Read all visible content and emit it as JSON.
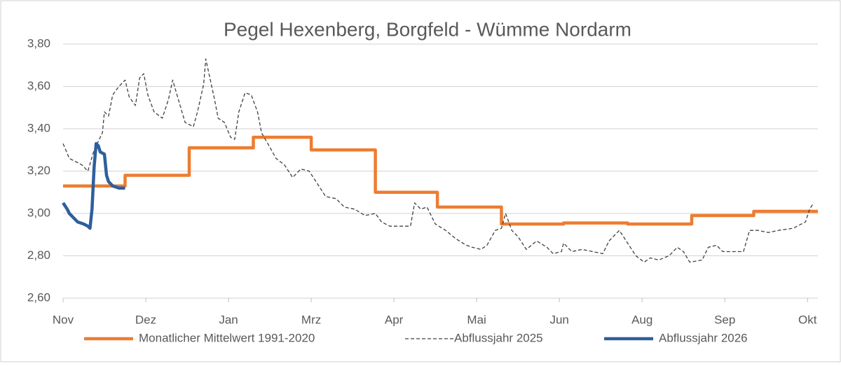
{
  "chart_data": {
    "type": "line",
    "title": "Pegel Hexenberg, Borgfeld - Wümme Nordarm",
    "xlim": [
      0,
      365
    ],
    "xticks": [
      {
        "value": 0,
        "label": "Nov"
      },
      {
        "value": 40,
        "label": "Dez"
      },
      {
        "value": 80,
        "label": "Jan"
      },
      {
        "value": 120,
        "label": "Mrz"
      },
      {
        "value": 160,
        "label": "Apr"
      },
      {
        "value": 200,
        "label": "Mai"
      },
      {
        "value": 240,
        "label": "Jun"
      },
      {
        "value": 280,
        "label": "Aug"
      },
      {
        "value": 320,
        "label": "Sep"
      },
      {
        "value": 360,
        "label": "Okt"
      }
    ],
    "ylim": [
      2.6,
      3.8
    ],
    "yticks": [
      {
        "value": 2.6,
        "label": "2,60"
      },
      {
        "value": 2.8,
        "label": "2,80"
      },
      {
        "value": 3.0,
        "label": "3,00"
      },
      {
        "value": 3.2,
        "label": "3,20"
      },
      {
        "value": 3.4,
        "label": "3,40"
      },
      {
        "value": 3.6,
        "label": "3,60"
      },
      {
        "value": 3.8,
        "label": "3,80"
      }
    ],
    "grid": true,
    "legend": "bottom",
    "series": [
      {
        "name": "Monatlicher Mittelwert 1991-2020",
        "color": "#ed7d31",
        "style": "solid",
        "x": [
          0,
          30,
          30,
          61,
          61,
          92,
          92,
          120,
          120,
          151,
          151,
          181,
          181,
          212,
          212,
          242,
          242,
          273,
          273,
          304,
          304,
          334,
          334,
          365
        ],
        "values": [
          3.13,
          3.13,
          3.18,
          3.18,
          3.31,
          3.31,
          3.36,
          3.36,
          3.3,
          3.3,
          3.1,
          3.1,
          3.03,
          3.03,
          2.95,
          2.95,
          2.955,
          2.955,
          2.95,
          2.95,
          2.99,
          2.99,
          3.01,
          3.01
        ]
      },
      {
        "name": "Abflussjahr 2025",
        "color": "#404040",
        "style": "dashed",
        "x": [
          0,
          3,
          9,
          12,
          15,
          19,
          20,
          22,
          24,
          27,
          30,
          32,
          35,
          37,
          39,
          41,
          44,
          48,
          51,
          53,
          56,
          59,
          63,
          65,
          68,
          69,
          71,
          73,
          75,
          78,
          81,
          83,
          85,
          88,
          91,
          94,
          96,
          99,
          103,
          107,
          111,
          115,
          119,
          123,
          127,
          132,
          136,
          141,
          146,
          151,
          154,
          158,
          163,
          168,
          170,
          173,
          176,
          180,
          185,
          190,
          195,
          198,
          202,
          205,
          209,
          212,
          214,
          217,
          220,
          224,
          229,
          234,
          237,
          241,
          242,
          246,
          251,
          256,
          261,
          264,
          269,
          273,
          277,
          281,
          284,
          288,
          293,
          297,
          300,
          303,
          309,
          312,
          316,
          319,
          324,
          329,
          332,
          336,
          341,
          346,
          353,
          359,
          361,
          363
        ],
        "values": [
          3.33,
          3.26,
          3.23,
          3.2,
          3.3,
          3.38,
          3.48,
          3.46,
          3.56,
          3.6,
          3.63,
          3.55,
          3.51,
          3.64,
          3.66,
          3.56,
          3.48,
          3.45,
          3.54,
          3.63,
          3.53,
          3.43,
          3.41,
          3.48,
          3.61,
          3.73,
          3.64,
          3.55,
          3.45,
          3.43,
          3.36,
          3.35,
          3.48,
          3.57,
          3.56,
          3.48,
          3.38,
          3.33,
          3.26,
          3.23,
          3.17,
          3.21,
          3.2,
          3.14,
          3.08,
          3.07,
          3.03,
          3.02,
          2.99,
          3.0,
          2.96,
          2.94,
          2.94,
          2.94,
          3.05,
          3.02,
          3.03,
          2.95,
          2.92,
          2.88,
          2.85,
          2.84,
          2.83,
          2.85,
          2.92,
          2.93,
          3.0,
          2.92,
          2.89,
          2.83,
          2.87,
          2.84,
          2.81,
          2.82,
          2.86,
          2.82,
          2.83,
          2.82,
          2.81,
          2.87,
          2.92,
          2.86,
          2.8,
          2.77,
          2.79,
          2.78,
          2.8,
          2.84,
          2.82,
          2.77,
          2.78,
          2.84,
          2.85,
          2.82,
          2.82,
          2.82,
          2.92,
          2.92,
          2.91,
          2.92,
          2.93,
          2.96,
          3.02,
          3.05
        ]
      },
      {
        "name": "Abflussjahr 2026",
        "color": "#2e5f9b",
        "style": "solid",
        "x": [
          0,
          2,
          3,
          5,
          7,
          10,
          12,
          13,
          14,
          15,
          16,
          17,
          18,
          20,
          21,
          22,
          24,
          27,
          30
        ],
        "values": [
          3.05,
          3.02,
          3.0,
          2.98,
          2.96,
          2.95,
          2.94,
          2.93,
          3.02,
          3.22,
          3.33,
          3.32,
          3.29,
          3.28,
          3.18,
          3.15,
          3.13,
          3.12,
          3.12
        ]
      }
    ]
  }
}
